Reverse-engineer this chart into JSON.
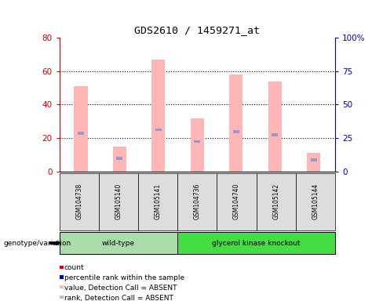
{
  "title": "GDS2610 / 1459271_at",
  "samples": [
    "GSM104738",
    "GSM105140",
    "GSM105141",
    "GSM104736",
    "GSM104740",
    "GSM105142",
    "GSM105144"
  ],
  "groups": [
    "wild-type",
    "wild-type",
    "wild-type",
    "glycerol kinase knockout",
    "glycerol kinase knockout",
    "glycerol kinase knockout",
    "glycerol kinase knockout"
  ],
  "pink_bar_values": [
    51,
    15,
    67,
    32,
    58,
    54,
    11
  ],
  "blue_marker_values": [
    23,
    8,
    25,
    18,
    24,
    22,
    7
  ],
  "pink_bar_color": "#FFB6B6",
  "blue_marker_color": "#9999CC",
  "left_axis_color": "#CC0000",
  "right_axis_color": "#0000BB",
  "ylim_left": [
    0,
    80
  ],
  "ylim_right": [
    0,
    100
  ],
  "yticks_left": [
    0,
    20,
    40,
    60,
    80
  ],
  "yticks_right": [
    0,
    25,
    50,
    75,
    100
  ],
  "ytick_labels_right": [
    "0",
    "25",
    "50",
    "75",
    "100%"
  ],
  "wildtype_color": "#AADDAA",
  "knockout_color": "#44DD44",
  "sample_box_color": "#DDDDDD",
  "genotype_label": "genotype/variation",
  "legend_items": [
    {
      "color": "#CC0000",
      "label": "count"
    },
    {
      "color": "#0000BB",
      "label": "percentile rank within the sample"
    },
    {
      "color": "#FFB6B6",
      "label": "value, Detection Call = ABSENT"
    },
    {
      "color": "#BBBBDD",
      "label": "rank, Detection Call = ABSENT"
    }
  ]
}
